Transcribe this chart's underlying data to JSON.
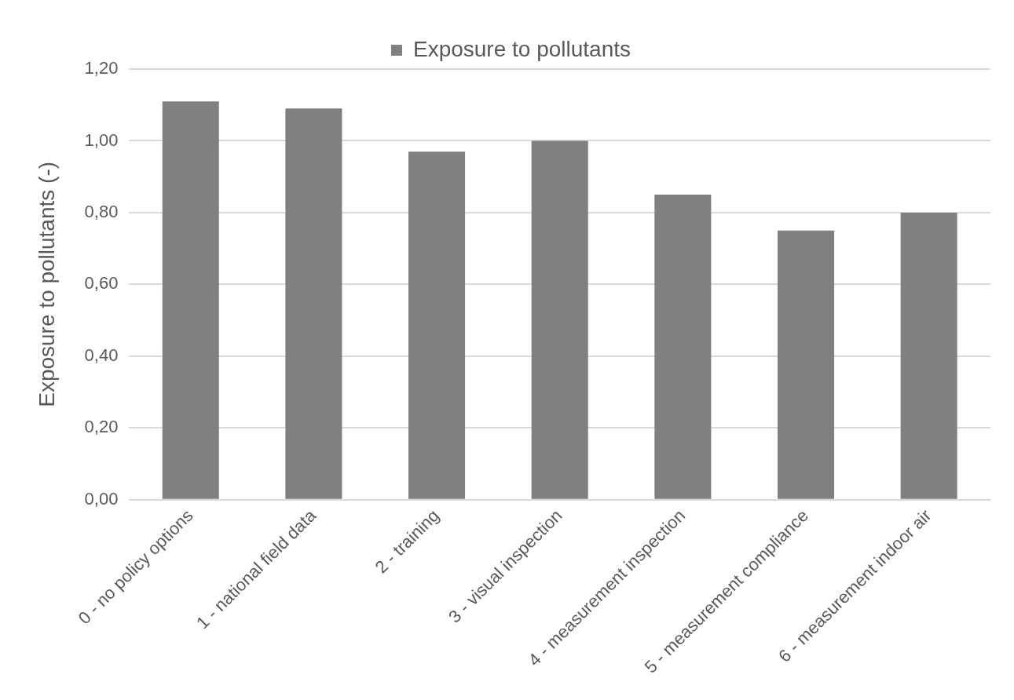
{
  "chart_data": {
    "type": "bar",
    "ylabel": "Exposure to pollutants (-)",
    "categories": [
      "0 - no policy options",
      "1 - national field data",
      "2 - training",
      "3 - visual inspection",
      "4 - measurement inspection",
      "5 - measurement compliance",
      "6 - measurement indoor air"
    ],
    "series": [
      {
        "name": "Exposure to pollutants",
        "color": "#808080",
        "values": [
          1.11,
          1.09,
          0.97,
          1.0,
          0.85,
          0.75,
          0.8
        ]
      }
    ],
    "ylim": [
      0,
      1.2
    ],
    "yticks": [
      {
        "value": 0,
        "label": "0,00"
      },
      {
        "value": 0.2,
        "label": "0,20"
      },
      {
        "value": 0.4,
        "label": "0,40"
      },
      {
        "value": 0.6,
        "label": "0,60"
      },
      {
        "value": 0.8,
        "label": "0,80"
      },
      {
        "value": 1.0,
        "label": "1,00"
      },
      {
        "value": 1.2,
        "label": "1,20"
      }
    ],
    "grid": "y",
    "legend": "top"
  }
}
